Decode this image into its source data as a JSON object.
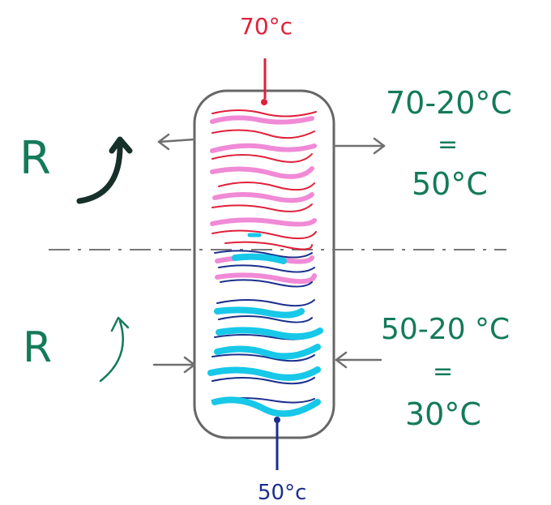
{
  "diagram": {
    "top_temp": "70°c",
    "bottom_temp": "50°c",
    "upper_right": {
      "line1": "70-20°C",
      "eq": "=",
      "line2": "50°C"
    },
    "lower_right": {
      "line1": "50-20 °C",
      "eq": "=",
      "line2": "30°C"
    },
    "upper_left_label": "R",
    "lower_left_label": "R"
  },
  "colors": {
    "red": "#e0203a",
    "pink": "#f08ad6",
    "navy": "#1a2f8c",
    "cyan": "#17c8e8",
    "green": "#137a5a",
    "dark_green": "#16302a",
    "gray": "#707070",
    "tank": "#666666"
  }
}
